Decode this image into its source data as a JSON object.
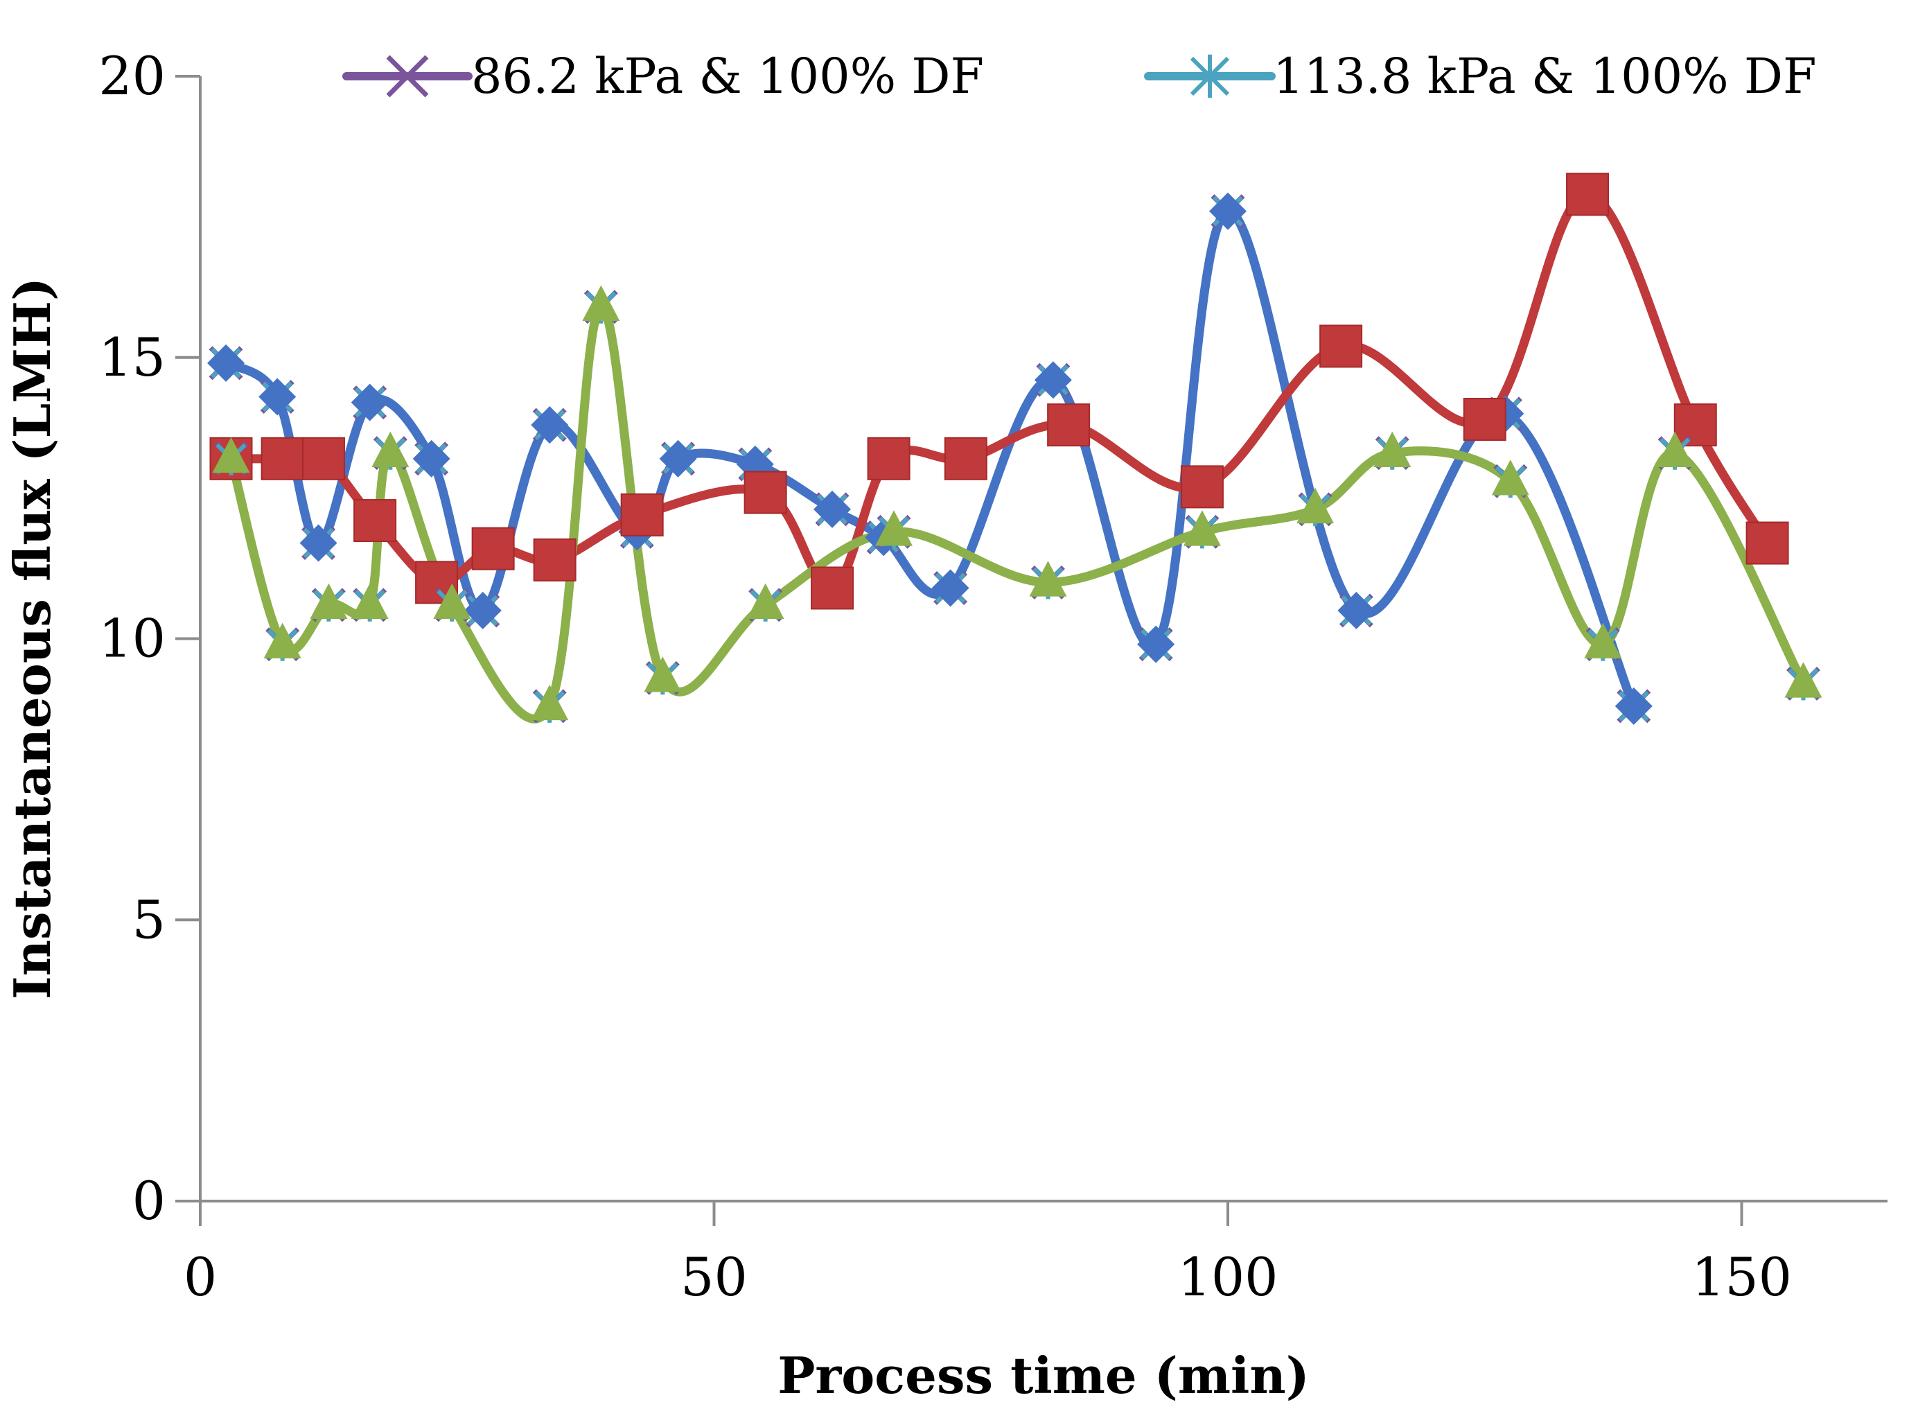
{
  "chart_data": {
    "type": "line",
    "title": "",
    "xlabel": "Process time (min)",
    "ylabel": "Instantaneous flux (LMH)",
    "xlim": [
      0,
      165
    ],
    "ylim": [
      0,
      20
    ],
    "xticks": [
      0,
      50,
      100,
      150
    ],
    "yticks": [
      0,
      5,
      10,
      15,
      20
    ],
    "legend_position": "top",
    "legend": [
      {
        "name": "86.2 kPa & 100% DF",
        "color": "#7a559c",
        "marker": "x"
      },
      {
        "name": "113.8 kPa & 100% DF",
        "color": "#4aa3bf",
        "marker": "star"
      }
    ],
    "series": [
      {
        "name": "series-blue",
        "color": "#4472c4",
        "marker": "diamond",
        "x": [
          2.5,
          7.5,
          11.5,
          16.5,
          22.5,
          27.5,
          34,
          42.5,
          46.5,
          54,
          61.5,
          66.5,
          73,
          83,
          93,
          100,
          112.5,
          127,
          139.5
        ],
        "y": [
          14.9,
          14.3,
          11.7,
          14.2,
          13.2,
          10.5,
          13.8,
          11.9,
          13.2,
          13.1,
          12.3,
          11.8,
          10.9,
          14.6,
          9.9,
          17.6,
          10.5,
          14.0,
          8.8
        ]
      },
      {
        "name": "series-red",
        "color": "#c0393b",
        "marker": "square",
        "x": [
          3,
          8,
          12,
          17,
          23,
          28.5,
          34.5,
          43,
          55,
          61.5,
          67,
          74.5,
          84.5,
          97.5,
          111,
          125,
          135,
          145.5,
          152.5
        ],
        "y": [
          13.2,
          13.2,
          13.2,
          12.1,
          11.0,
          11.6,
          11.4,
          12.2,
          12.6,
          10.9,
          13.2,
          13.2,
          13.8,
          12.7,
          15.2,
          13.9,
          17.9,
          13.8,
          11.7
        ]
      },
      {
        "name": "series-green",
        "color": "#8cb04a",
        "marker": "triangle",
        "x": [
          3,
          8,
          12.5,
          16.5,
          18.5,
          24.5,
          34,
          39,
          45,
          55,
          67.5,
          82.5,
          97.5,
          108.5,
          116,
          127.5,
          136.5,
          143.5,
          156
        ],
        "y": [
          13.2,
          9.9,
          10.6,
          10.6,
          13.3,
          10.6,
          8.8,
          15.9,
          9.3,
          10.6,
          11.9,
          11.0,
          11.9,
          12.3,
          13.3,
          12.8,
          9.9,
          13.3,
          9.2
        ]
      }
    ]
  }
}
